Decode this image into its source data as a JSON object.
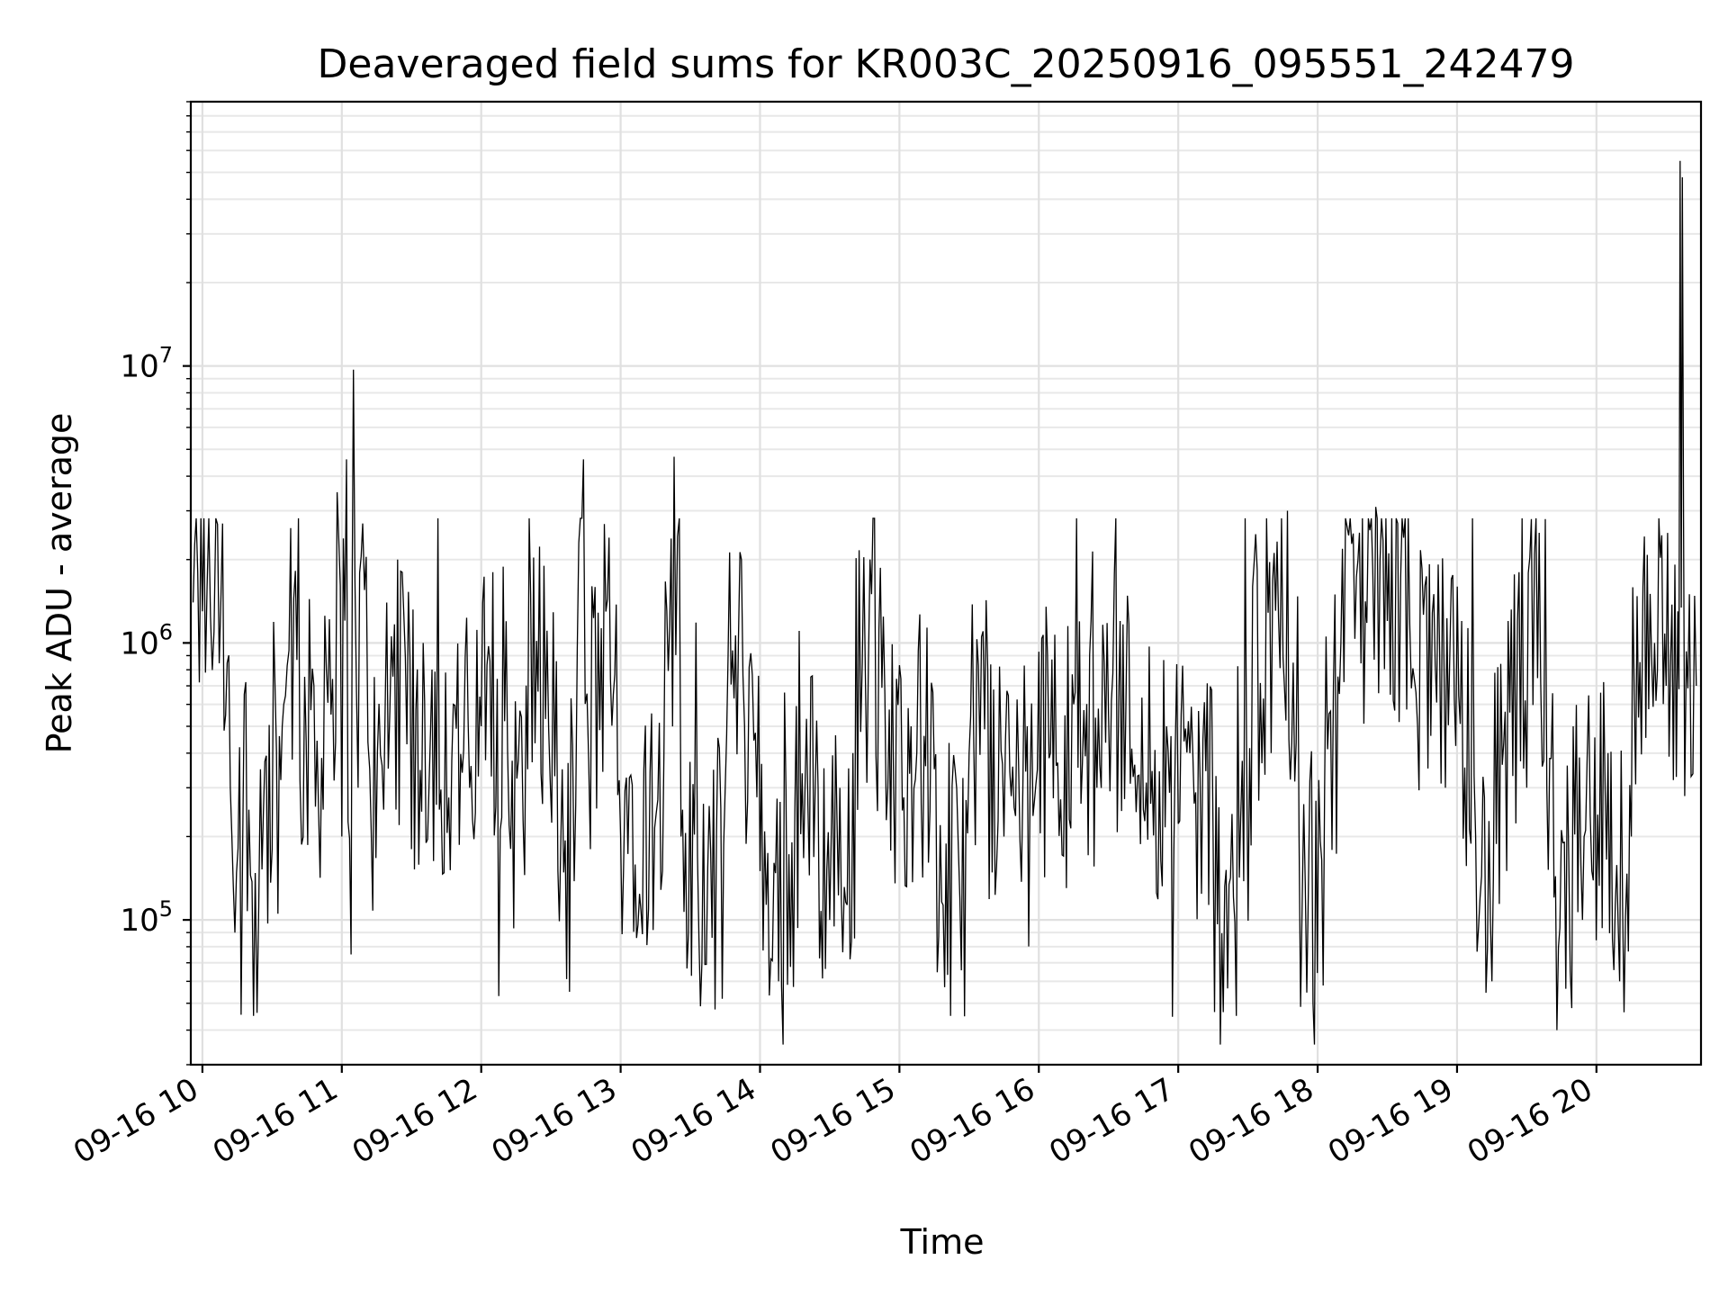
{
  "chart_data": {
    "type": "line",
    "title": "Deaveraged field sums for KR003C_20250916_095551_242479",
    "xlabel": "Time",
    "ylabel": "Peak ADU - average",
    "x_scale": "time",
    "y_scale": "log",
    "xlim": [
      "2025-09-16 09:55",
      "2025-09-16 20:45"
    ],
    "ylim": [
      30000,
      90000000
    ],
    "grid": true,
    "legend": "none",
    "x_ticks": [
      "09-16 10",
      "09-16 11",
      "09-16 12",
      "09-16 13",
      "09-16 14",
      "09-16 15",
      "09-16 16",
      "09-16 17",
      "09-16 18",
      "09-16 19",
      "09-16 20"
    ],
    "x_tick_times": [
      "2025-09-16 10:00",
      "2025-09-16 11:00",
      "2025-09-16 12:00",
      "2025-09-16 13:00",
      "2025-09-16 14:00",
      "2025-09-16 15:00",
      "2025-09-16 16:00",
      "2025-09-16 17:00",
      "2025-09-16 18:00",
      "2025-09-16 19:00",
      "2025-09-16 20:00"
    ],
    "y_ticks": [
      {
        "value": 100000,
        "base": "10",
        "exp": "5"
      },
      {
        "value": 1000000,
        "base": "10",
        "exp": "6"
      },
      {
        "value": 10000000,
        "base": "10",
        "exp": "7"
      }
    ],
    "series": [
      {
        "color": "#000000",
        "points": [
          [
            "2025-09-16 09:56",
            1400000
          ],
          [
            "2025-09-16 09:58",
            1800000
          ],
          [
            "2025-09-16 10:00",
            1300000
          ],
          [
            "2025-09-16 10:02",
            1600000
          ],
          [
            "2025-09-16 10:05",
            1100000
          ],
          [
            "2025-09-16 10:08",
            1500000
          ],
          [
            "2025-09-16 10:10",
            550000
          ],
          [
            "2025-09-16 10:12",
            300000
          ],
          [
            "2025-09-16 10:14",
            90000
          ],
          [
            "2025-09-16 10:16",
            420000
          ],
          [
            "2025-09-16 10:20",
            250000
          ],
          [
            "2025-09-16 10:22",
            45000
          ],
          [
            "2025-09-16 10:25",
            350000
          ],
          [
            "2025-09-16 10:30",
            180000
          ],
          [
            "2025-09-16 10:35",
            600000
          ],
          [
            "2025-09-16 10:38",
            2600000
          ],
          [
            "2025-09-16 10:42",
            320000
          ],
          [
            "2025-09-16 10:48",
            700000
          ],
          [
            "2025-09-16 10:52",
            250000
          ],
          [
            "2025-09-16 10:58",
            3500000
          ],
          [
            "2025-09-16 11:00",
            200000
          ],
          [
            "2025-09-16 11:02",
            4600000
          ],
          [
            "2025-09-16 11:04",
            75000
          ],
          [
            "2025-09-16 11:05",
            9700000
          ],
          [
            "2025-09-16 11:07",
            300000
          ],
          [
            "2025-09-16 11:09",
            2700000
          ],
          [
            "2025-09-16 11:12",
            350000
          ],
          [
            "2025-09-16 11:18",
            250000
          ],
          [
            "2025-09-16 11:24",
            2000000
          ],
          [
            "2025-09-16 11:30",
            180000
          ],
          [
            "2025-09-16 11:35",
            1000000
          ],
          [
            "2025-09-16 11:42",
            250000
          ],
          [
            "2025-09-16 11:48",
            600000
          ],
          [
            "2025-09-16 11:55",
            300000
          ],
          [
            "2025-09-16 12:00",
            500000
          ],
          [
            "2025-09-16 12:05",
            1800000
          ],
          [
            "2025-09-16 12:12",
            220000
          ],
          [
            "2025-09-16 12:20",
            350000
          ],
          [
            "2025-09-16 12:27",
            1900000
          ],
          [
            "2025-09-16 12:33",
            150000
          ],
          [
            "2025-09-16 12:38",
            55000
          ],
          [
            "2025-09-16 12:42",
            2300000
          ],
          [
            "2025-09-16 12:44",
            4600000
          ],
          [
            "2025-09-16 12:47",
            180000
          ],
          [
            "2025-09-16 12:55",
            2400000
          ],
          [
            "2025-09-16 13:00",
            200000
          ],
          [
            "2025-09-16 13:10",
            350000
          ],
          [
            "2025-09-16 13:18",
            150000
          ],
          [
            "2025-09-16 13:23",
            4700000
          ],
          [
            "2025-09-16 13:26",
            200000
          ],
          [
            "2025-09-16 13:35",
            70000
          ],
          [
            "2025-09-16 13:45",
            300000
          ],
          [
            "2025-09-16 13:52",
            2000000
          ],
          [
            "2025-09-16 14:00",
            150000
          ],
          [
            "2025-09-16 14:08",
            60000
          ],
          [
            "2025-09-16 14:15",
            250000
          ],
          [
            "2025-09-16 14:25",
            300000
          ],
          [
            "2025-09-16 14:30",
            100000
          ],
          [
            "2025-09-16 14:40",
            400000
          ],
          [
            "2025-09-16 14:48",
            1500000
          ],
          [
            "2025-09-16 14:55",
            300000
          ],
          [
            "2025-09-16 15:05",
            500000
          ],
          [
            "2025-09-16 15:15",
            350000
          ],
          [
            "2025-09-16 15:22",
            45000
          ],
          [
            "2025-09-16 15:30",
            400000
          ],
          [
            "2025-09-16 15:38",
            800000
          ],
          [
            "2025-09-16 15:45",
            200000
          ],
          [
            "2025-09-16 15:55",
            500000
          ],
          [
            "2025-09-16 16:05",
            400000
          ],
          [
            "2025-09-16 16:15",
            600000
          ],
          [
            "2025-09-16 16:25",
            300000
          ],
          [
            "2025-09-16 16:35",
            1200000
          ],
          [
            "2025-09-16 16:45",
            250000
          ],
          [
            "2025-09-16 16:55",
            500000
          ],
          [
            "2025-09-16 17:05",
            400000
          ],
          [
            "2025-09-16 17:15",
            200000
          ],
          [
            "2025-09-16 17:25",
            45000
          ],
          [
            "2025-09-16 17:32",
            1600000
          ],
          [
            "2025-09-16 17:40",
            400000
          ],
          [
            "2025-09-16 17:47",
            3000000
          ],
          [
            "2025-09-16 17:52",
            200000
          ],
          [
            "2025-09-16 17:58",
            50000
          ],
          [
            "2025-09-16 18:03",
            300000
          ],
          [
            "2025-09-16 18:10",
            1000000
          ],
          [
            "2025-09-16 18:18",
            2500000
          ],
          [
            "2025-09-16 18:25",
            3100000
          ],
          [
            "2025-09-16 18:30",
            1200000
          ],
          [
            "2025-09-16 18:37",
            2400000
          ],
          [
            "2025-09-16 18:43",
            500000
          ],
          [
            "2025-09-16 18:50",
            1500000
          ],
          [
            "2025-09-16 18:55",
            300000
          ],
          [
            "2025-09-16 19:02",
            1200000
          ],
          [
            "2025-09-16 19:08",
            200000
          ],
          [
            "2025-09-16 19:15",
            60000
          ],
          [
            "2025-09-16 19:22",
            1200000
          ],
          [
            "2025-09-16 19:30",
            300000
          ],
          [
            "2025-09-16 19:38",
            2800000
          ],
          [
            "2025-09-16 19:43",
            40000
          ],
          [
            "2025-09-16 19:50",
            500000
          ],
          [
            "2025-09-16 19:58",
            150000
          ],
          [
            "2025-09-16 20:05",
            400000
          ],
          [
            "2025-09-16 20:10",
            60000
          ],
          [
            "2025-09-16 20:15",
            200000
          ],
          [
            "2025-09-16 20:20",
            1600000
          ],
          [
            "2025-09-16 20:25",
            1000000
          ],
          [
            "2025-09-16 20:30",
            700000
          ],
          [
            "2025-09-16 20:35",
            1300000
          ],
          [
            "2025-09-16 20:36",
            55000000
          ],
          [
            "2025-09-16 20:37",
            48000000
          ],
          [
            "2025-09-16 20:38",
            280000
          ],
          [
            "2025-09-16 20:40",
            1500000
          ],
          [
            "2025-09-16 20:43",
            700000
          ]
        ]
      }
    ]
  }
}
